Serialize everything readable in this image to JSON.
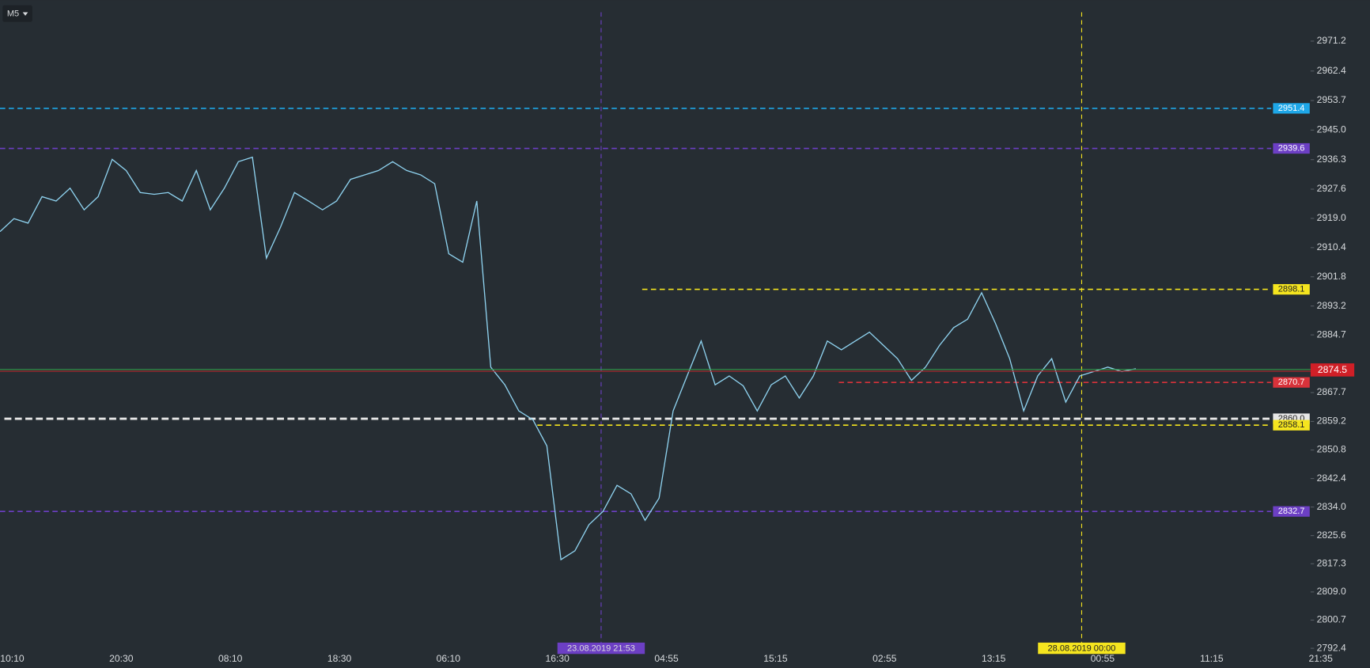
{
  "chart_data": {
    "type": "line",
    "timeframe": "M5",
    "x_labels": [
      "10:10",
      "20:30",
      "08:10",
      "18:30",
      "06:10",
      "16:30",
      "04:55",
      "15:15",
      "02:55",
      "13:15",
      "00:55",
      "11:15",
      "21:35"
    ],
    "series": [
      {
        "color": "#8fd3f0",
        "values": [
          2915.1,
          2918.9,
          2917.6,
          2925.4,
          2924.1,
          2927.9,
          2921.5,
          2925.4,
          2936.4,
          2933.1,
          2926.6,
          2926.1,
          2926.6,
          2924.1,
          2933.1,
          2921.5,
          2927.9,
          2935.7,
          2937.0,
          2907.3,
          2916.4,
          2926.6,
          2924.1,
          2921.5,
          2924.1,
          2930.5,
          2931.8,
          2933.1,
          2935.7,
          2933.1,
          2931.8,
          2929.2,
          2908.6,
          2906.1,
          2924.1,
          2875.2,
          2870.0,
          2862.3,
          2859.7,
          2852.0,
          2818.5,
          2821.1,
          2828.8,
          2832.7,
          2840.4,
          2837.9,
          2830.1,
          2836.6,
          2862.3,
          2872.6,
          2882.9,
          2870.0,
          2872.6,
          2869.7,
          2862.3,
          2870.0,
          2872.6,
          2866.1,
          2872.6,
          2882.9,
          2880.3,
          2882.9,
          2885.5,
          2881.6,
          2877.7,
          2871.3,
          2875.2,
          2881.6,
          2886.8,
          2889.3,
          2897.1,
          2888.0,
          2877.7,
          2862.3,
          2872.6,
          2877.7,
          2864.9,
          2872.6,
          2873.9,
          2875.2,
          2873.9,
          2874.7
        ]
      }
    ],
    "ylim": [
      2791.5,
      2983.3
    ],
    "yticks": [
      2971.2,
      2962.4,
      2953.7,
      {
        "value": 2945,
        "label": "2945.0"
      },
      2936.3,
      2927.6,
      {
        "value": 2919,
        "label": "2919.0"
      },
      2910.4,
      2901.8,
      2893.2,
      2884.7,
      2867.7,
      2859.2,
      2850.8,
      2842.4,
      {
        "value": 2834,
        "label": "2834.0"
      },
      2825.6,
      2817.3,
      {
        "value": 2809,
        "label": "2809.0"
      },
      2800.7,
      2792.4
    ],
    "levels": [
      {
        "value": 2951.4,
        "color": "#1ea7e8"
      },
      {
        "value": 2939.6,
        "color": "#6c3fc4"
      },
      {
        "value": 2898.1,
        "color": "#f5e51f"
      },
      {
        "value": 2870.7,
        "color": "#d8323a"
      },
      {
        "value": 2860,
        "label": "2860.0",
        "color": "#e6e6e6"
      },
      {
        "value": 2858.1,
        "color": "#f5e51f"
      },
      {
        "value": 2832.7,
        "color": "#6c3fc4"
      }
    ],
    "last_price": 2874.5,
    "markers": [
      {
        "label": "23.08.2019 21:53",
        "color": "#6c3fc4"
      },
      {
        "label": "28.08.2019 00:00",
        "color": "#f5e51f"
      }
    ]
  }
}
